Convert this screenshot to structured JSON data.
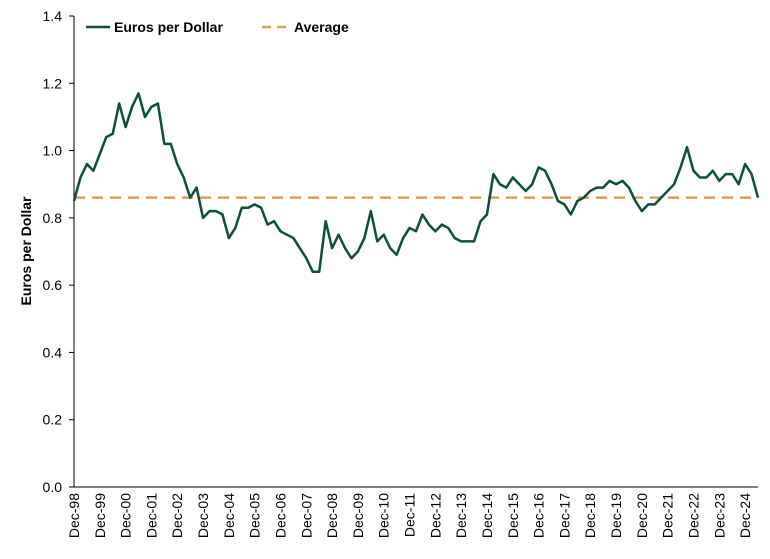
{
  "chart_data": {
    "type": "line",
    "y_label": "Euros per Dollar",
    "categories": [
      "Dec-98",
      null,
      null,
      null,
      "Dec-99",
      null,
      null,
      null,
      "Dec-00",
      null,
      null,
      null,
      "Dec-01",
      null,
      null,
      null,
      "Dec-02",
      null,
      null,
      null,
      "Dec-03",
      null,
      null,
      null,
      "Dec-04",
      null,
      null,
      null,
      "Dec-05",
      null,
      null,
      null,
      "Dec-06",
      null,
      null,
      null,
      "Dec-07",
      null,
      null,
      null,
      "Dec-08",
      null,
      null,
      null,
      "Dec-09",
      null,
      null,
      null,
      "Dec-10",
      null,
      null,
      null,
      "Dec-11",
      null,
      null,
      null,
      "Dec-12",
      null,
      null,
      null,
      "Dec-13",
      null,
      null,
      null,
      "Dec-14",
      null,
      null,
      null,
      "Dec-15",
      null,
      null,
      null,
      "Dec-16",
      null,
      null,
      null,
      "Dec-17",
      null,
      null,
      null,
      "Dec-18",
      null,
      null,
      null,
      "Dec-19",
      null,
      null,
      null,
      "Dec-20",
      null,
      null,
      null,
      "Dec-21",
      null,
      null,
      null,
      "Dec-22",
      null,
      null,
      null,
      "Dec-23",
      null,
      null,
      null,
      "Dec-24",
      null,
      null
    ],
    "series": [
      {
        "name": "Euros per Dollar",
        "color": "#0d4f3c",
        "values": [
          0.85,
          0.92,
          0.96,
          0.94,
          0.99,
          1.04,
          1.05,
          1.14,
          1.07,
          1.13,
          1.17,
          1.1,
          1.13,
          1.14,
          1.02,
          1.02,
          0.96,
          0.92,
          0.86,
          0.89,
          0.8,
          0.82,
          0.82,
          0.81,
          0.74,
          0.77,
          0.83,
          0.83,
          0.84,
          0.83,
          0.78,
          0.79,
          0.76,
          0.75,
          0.74,
          0.71,
          0.68,
          0.64,
          0.64,
          0.79,
          0.71,
          0.75,
          0.71,
          0.68,
          0.7,
          0.74,
          0.82,
          0.73,
          0.75,
          0.71,
          0.69,
          0.74,
          0.77,
          0.76,
          0.81,
          0.78,
          0.76,
          0.78,
          0.77,
          0.74,
          0.73,
          0.73,
          0.73,
          0.79,
          0.81,
          0.93,
          0.9,
          0.89,
          0.92,
          0.9,
          0.88,
          0.9,
          0.95,
          0.94,
          0.9,
          0.85,
          0.84,
          0.81,
          0.85,
          0.86,
          0.88,
          0.89,
          0.89,
          0.91,
          0.9,
          0.91,
          0.89,
          0.85,
          0.82,
          0.84,
          0.84,
          0.86,
          0.88,
          0.9,
          0.95,
          1.01,
          0.94,
          0.92,
          0.92,
          0.94,
          0.91,
          0.93,
          0.93,
          0.9,
          0.96,
          0.93,
          0.86
        ]
      }
    ],
    "reference_line": {
      "name": "Average",
      "value": 0.86,
      "color": "#d4a05a"
    },
    "ylim": [
      0,
      1.4
    ],
    "yticks": [
      {
        "value": 0,
        "label": "0.0"
      },
      0.2,
      0.4,
      0.6,
      0.8,
      {
        "value": 1,
        "label": "1.0"
      },
      1.2,
      1.4
    ],
    "grid": false
  }
}
